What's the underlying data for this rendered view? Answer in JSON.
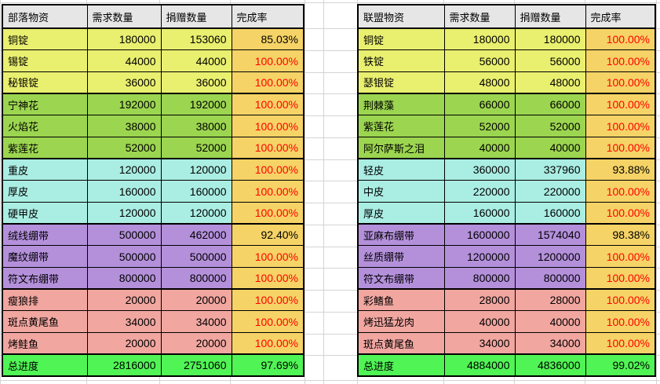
{
  "colors": {
    "header_bg": "#e6e6e6",
    "rate_bg": "#f5d366",
    "rate_complete_text": "#ff0000",
    "rate_incomplete_text": "#000000",
    "gridline": "#d4d4d4",
    "border": "#000000",
    "groups": {
      "metal": "#e9ef6f",
      "herb": "#9cd550",
      "leather": "#aaede3",
      "bandage": "#b490db",
      "food": "#f1a6a0",
      "total": "#50f455"
    }
  },
  "tables": [
    {
      "id": "horde",
      "headers": {
        "item": "部落物资",
        "required": "需求数量",
        "donated": "捐赠数量",
        "rate": "完成率"
      },
      "rows": [
        {
          "item": "铜锭",
          "required": "180000",
          "donated": "153060",
          "rate": "85.03%",
          "group": "metal",
          "complete": false
        },
        {
          "item": "锡锭",
          "required": "44000",
          "donated": "44000",
          "rate": "100.00%",
          "group": "metal",
          "complete": true
        },
        {
          "item": "秘银锭",
          "required": "36000",
          "donated": "36000",
          "rate": "100.00%",
          "group": "metal",
          "complete": true
        },
        {
          "item": "宁神花",
          "required": "192000",
          "donated": "192000",
          "rate": "100.00%",
          "group": "herb",
          "complete": true
        },
        {
          "item": "火焰花",
          "required": "38000",
          "donated": "38000",
          "rate": "100.00%",
          "group": "herb",
          "complete": true
        },
        {
          "item": "紫莲花",
          "required": "52000",
          "donated": "52000",
          "rate": "100.00%",
          "group": "herb",
          "complete": true
        },
        {
          "item": "重皮",
          "required": "120000",
          "donated": "120000",
          "rate": "100.00%",
          "group": "leather",
          "complete": true
        },
        {
          "item": "厚皮",
          "required": "160000",
          "donated": "160000",
          "rate": "100.00%",
          "group": "leather",
          "complete": true
        },
        {
          "item": "硬甲皮",
          "required": "120000",
          "donated": "120000",
          "rate": "100.00%",
          "group": "leather",
          "complete": true
        },
        {
          "item": "绒线绷带",
          "required": "500000",
          "donated": "462000",
          "rate": "92.40%",
          "group": "bandage",
          "complete": false
        },
        {
          "item": "魔纹绷带",
          "required": "500000",
          "donated": "500000",
          "rate": "100.00%",
          "group": "bandage",
          "complete": true
        },
        {
          "item": "符文布绷带",
          "required": "800000",
          "donated": "800000",
          "rate": "100.00%",
          "group": "bandage",
          "complete": true
        },
        {
          "item": "瘦狼排",
          "required": "20000",
          "donated": "20000",
          "rate": "100.00%",
          "group": "food",
          "complete": true
        },
        {
          "item": "斑点黄尾鱼",
          "required": "34000",
          "donated": "34000",
          "rate": "100.00%",
          "group": "food",
          "complete": true
        },
        {
          "item": "烤鲑鱼",
          "required": "20000",
          "donated": "20000",
          "rate": "100.00%",
          "group": "food",
          "complete": true
        },
        {
          "item": "总进度",
          "required": "2816000",
          "donated": "2751060",
          "rate": "97.69%",
          "group": "total",
          "complete": false
        }
      ]
    },
    {
      "id": "alliance",
      "headers": {
        "item": "联盟物资",
        "required": "需求数量",
        "donated": "捐赠数量",
        "rate": "完成率"
      },
      "rows": [
        {
          "item": "铜锭",
          "required": "180000",
          "donated": "180000",
          "rate": "100.00%",
          "group": "metal",
          "complete": true
        },
        {
          "item": "铁锭",
          "required": "56000",
          "donated": "56000",
          "rate": "100.00%",
          "group": "metal",
          "complete": true
        },
        {
          "item": "瑟银锭",
          "required": "48000",
          "donated": "48000",
          "rate": "100.00%",
          "group": "metal",
          "complete": true
        },
        {
          "item": "荆棘藻",
          "required": "66000",
          "donated": "66000",
          "rate": "100.00%",
          "group": "herb",
          "complete": true
        },
        {
          "item": "紫莲花",
          "required": "52000",
          "donated": "52000",
          "rate": "100.00%",
          "group": "herb",
          "complete": true
        },
        {
          "item": "阿尔萨斯之泪",
          "required": "40000",
          "donated": "40000",
          "rate": "100.00%",
          "group": "herb",
          "complete": true
        },
        {
          "item": "轻皮",
          "required": "360000",
          "donated": "337960",
          "rate": "93.88%",
          "group": "leather",
          "complete": false
        },
        {
          "item": "中皮",
          "required": "220000",
          "donated": "220000",
          "rate": "100.00%",
          "group": "leather",
          "complete": true
        },
        {
          "item": "厚皮",
          "required": "160000",
          "donated": "160000",
          "rate": "100.00%",
          "group": "leather",
          "complete": true
        },
        {
          "item": "亚麻布绷带",
          "required": "1600000",
          "donated": "1574040",
          "rate": "98.38%",
          "group": "bandage",
          "complete": false
        },
        {
          "item": "丝质绷带",
          "required": "1200000",
          "donated": "1200000",
          "rate": "100.00%",
          "group": "bandage",
          "complete": true
        },
        {
          "item": "符文布绷带",
          "required": "800000",
          "donated": "800000",
          "rate": "100.00%",
          "group": "bandage",
          "complete": true
        },
        {
          "item": "彩鳍鱼",
          "required": "28000",
          "donated": "28000",
          "rate": "100.00%",
          "group": "food",
          "complete": true
        },
        {
          "item": "烤迅猛龙肉",
          "required": "40000",
          "donated": "40000",
          "rate": "100.00%",
          "group": "food",
          "complete": true
        },
        {
          "item": "斑点黄尾鱼",
          "required": "34000",
          "donated": "34000",
          "rate": "100.00%",
          "group": "food",
          "complete": true
        },
        {
          "item": "总进度",
          "required": "4884000",
          "donated": "4836000",
          "rate": "99.02%",
          "group": "total",
          "complete": false
        }
      ]
    }
  ]
}
